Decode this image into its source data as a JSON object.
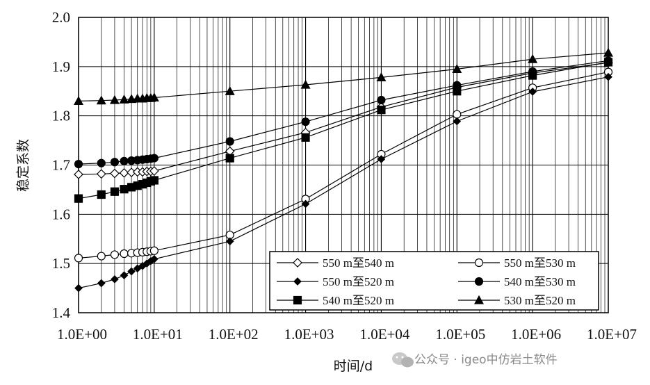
{
  "chart_data": {
    "type": "line",
    "title": "",
    "xlabel": "时间/d",
    "ylabel": "稳定系数",
    "xscale": "log",
    "xlim": [
      1,
      10000000
    ],
    "ylim": [
      1.4,
      2.0
    ],
    "yticks": [
      1.4,
      1.5,
      1.6,
      1.7,
      1.8,
      1.9,
      2.0
    ],
    "ytick_labels": [
      "1.4",
      "1.5",
      "1.6",
      "1.7",
      "1.8",
      "1.9",
      "2.0"
    ],
    "xtick_labels": [
      "1.0E+00",
      "1.0E+01",
      "1.0E+02",
      "1.0E+03",
      "1.0E+04",
      "1.0E+05",
      "1.0E+06",
      "1.0E+07"
    ],
    "grid": true,
    "legend_position": "bottom-right",
    "x": [
      1,
      2,
      3,
      4,
      5,
      6,
      7,
      8,
      9,
      10,
      100,
      1000,
      10000,
      100000,
      1000000,
      10000000
    ],
    "series": [
      {
        "name": "550 m至540 m",
        "marker": "diamond-open",
        "values": [
          1.681,
          1.682,
          1.683,
          1.684,
          1.685,
          1.686,
          1.686,
          1.687,
          1.687,
          1.688,
          1.728,
          1.766,
          1.818,
          1.858,
          1.887,
          1.908
        ]
      },
      {
        "name": "550 m至530 m",
        "marker": "circle-open",
        "values": [
          1.511,
          1.515,
          1.518,
          1.52,
          1.521,
          1.522,
          1.523,
          1.524,
          1.525,
          1.526,
          1.558,
          1.631,
          1.722,
          1.803,
          1.857,
          1.889
        ]
      },
      {
        "name": "550 m至520 m",
        "marker": "diamond-filled",
        "values": [
          1.45,
          1.46,
          1.468,
          1.476,
          1.484,
          1.49,
          1.495,
          1.5,
          1.505,
          1.509,
          1.545,
          1.621,
          1.712,
          1.789,
          1.849,
          1.879
        ]
      },
      {
        "name": "540 m至530 m",
        "marker": "circle-filled",
        "values": [
          1.702,
          1.704,
          1.706,
          1.708,
          1.709,
          1.71,
          1.711,
          1.712,
          1.713,
          1.714,
          1.748,
          1.788,
          1.832,
          1.862,
          1.89,
          1.912
        ]
      },
      {
        "name": "540 m至520 m",
        "marker": "square-filled",
        "values": [
          1.632,
          1.64,
          1.646,
          1.651,
          1.655,
          1.658,
          1.661,
          1.664,
          1.667,
          1.669,
          1.714,
          1.756,
          1.812,
          1.85,
          1.882,
          1.909
        ]
      },
      {
        "name": "530 m至520 m",
        "marker": "triangle-filled",
        "values": [
          1.83,
          1.831,
          1.832,
          1.833,
          1.834,
          1.835,
          1.835,
          1.836,
          1.836,
          1.837,
          1.85,
          1.863,
          1.878,
          1.895,
          1.915,
          1.928
        ]
      }
    ]
  },
  "watermark": "公众号 · igeo中仿岩土软件"
}
